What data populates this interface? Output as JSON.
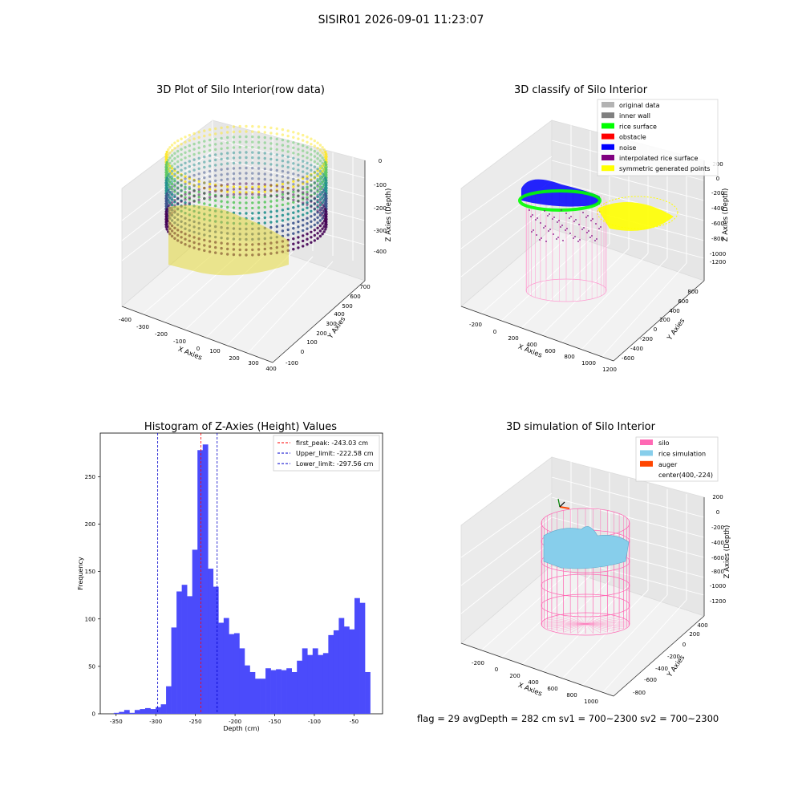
{
  "figure": {
    "suptitle": "SISIR01 2026-09-01 11:23:07",
    "footer": "flag = 29  avgDepth = 282 cm  sv1 = 700~2300  sv2 = 700~2300"
  },
  "chart_data": [
    {
      "type": "scatter3d",
      "title": "3D Plot of Silo Interior(row data)",
      "xlabel": "X Axies",
      "ylabel": "Y Axies",
      "zlabel": "Z Axies (Depth)",
      "xticks": [
        "-400",
        "-300",
        "-200",
        "-100",
        "0",
        "100",
        "200",
        "300",
        "400"
      ],
      "yticks": [
        "-100",
        "0",
        "100",
        "200",
        "300",
        "400",
        "500",
        "600",
        "700"
      ],
      "zticks": [
        "0",
        "-100",
        "-200",
        "-300",
        "-400"
      ],
      "colormap": "viridis"
    },
    {
      "type": "scatter3d",
      "title": "3D classify of Silo Interior",
      "xlabel": "X Axies",
      "ylabel": "Y Axies",
      "zlabel": "Z Axies (Depth)",
      "xticks": [
        "-200",
        "0",
        "200",
        "400",
        "600",
        "800",
        "1000",
        "1200"
      ],
      "yticks": [
        "-600",
        "-400",
        "-200",
        "0",
        "200",
        "400",
        "600",
        "800"
      ],
      "zticks": [
        "200",
        "0",
        "-200",
        "-400",
        "-600",
        "-800",
        "-1000",
        "-1200"
      ],
      "legend": [
        {
          "label": "original data",
          "color": "#b3b3b3"
        },
        {
          "label": "inner wall",
          "color": "#808080"
        },
        {
          "label": "rice surface",
          "color": "#00ff00"
        },
        {
          "label": "obstacle",
          "color": "#ff0000"
        },
        {
          "label": "noise",
          "color": "#0000ff"
        },
        {
          "label": "interpolated rice surface",
          "color": "#800080"
        },
        {
          "label": "symmetric generated points",
          "color": "#ffff00"
        }
      ]
    },
    {
      "type": "bar",
      "title": "Histogram of Z-Axies (Height) Values",
      "xlabel": "Depth (cm)",
      "ylabel": "Frequency",
      "xlim": [
        -370,
        -14
      ],
      "ylim": [
        0,
        296
      ],
      "xticks": [
        -350,
        -300,
        -250,
        -200,
        -150,
        -100,
        -50
      ],
      "yticks": [
        0,
        50,
        100,
        150,
        200,
        250
      ],
      "bin_start": -353,
      "bin_width": 6.6,
      "values": [
        1,
        2,
        4,
        1,
        4,
        5,
        6,
        5,
        7,
        10,
        29,
        91,
        129,
        136,
        124,
        173,
        278,
        284,
        153,
        134,
        96,
        101,
        84,
        85,
        69,
        51,
        44,
        37,
        37,
        48,
        46,
        47,
        46,
        48,
        44,
        56,
        69,
        62,
        69,
        62,
        64,
        83,
        88,
        101,
        92,
        89,
        122,
        117,
        44
      ],
      "bar_color": "#4b4bfb",
      "vlines": [
        {
          "x": -243.03,
          "label": "first_peak: -243.03 cm",
          "color": "#ff0000"
        },
        {
          "x": -222.58,
          "label": "Upper_limit: -222.58 cm",
          "color": "#0000cc"
        },
        {
          "x": -297.56,
          "label": "Lower_limit: -297.56 cm",
          "color": "#0000cc"
        }
      ]
    },
    {
      "type": "surface3d",
      "title": "3D simulation of Silo Interior",
      "xlabel": "X Axies",
      "ylabel": "Y Axies",
      "zlabel": "Z Axies (Depth)",
      "xticks": [
        "-200",
        "0",
        "200",
        "400",
        "600",
        "800",
        "1000"
      ],
      "yticks": [
        "-800",
        "-600",
        "-400",
        "-200",
        "0",
        "200",
        "400"
      ],
      "zticks": [
        "200",
        "0",
        "-200",
        "-400",
        "-600",
        "-800",
        "-1000",
        "-1200"
      ],
      "legend": [
        {
          "label": "silo",
          "color": "#ff69b4"
        },
        {
          "label": "rice simulation",
          "color": "#87ceeb"
        },
        {
          "label": "auger",
          "color": "#ff4500"
        },
        {
          "label": "center(400,-224)",
          "color": ""
        }
      ]
    }
  ]
}
